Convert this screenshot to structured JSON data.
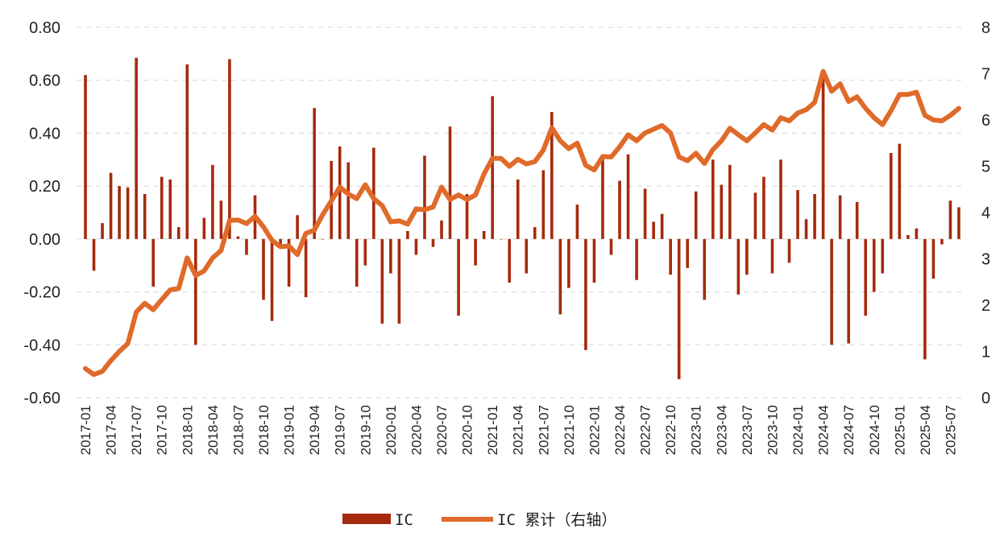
{
  "chart_data": {
    "type": "bar+line",
    "title": "",
    "x": [
      "2017-01",
      "2017-02",
      "2017-03",
      "2017-04",
      "2017-05",
      "2017-06",
      "2017-07",
      "2017-08",
      "2017-09",
      "2017-10",
      "2017-11",
      "2017-12",
      "2018-01",
      "2018-02",
      "2018-03",
      "2018-04",
      "2018-05",
      "2018-06",
      "2018-07",
      "2018-08",
      "2018-09",
      "2018-10",
      "2018-11",
      "2018-12",
      "2019-01",
      "2019-02",
      "2019-03",
      "2019-04",
      "2019-05",
      "2019-06",
      "2019-07",
      "2019-08",
      "2019-09",
      "2019-10",
      "2019-11",
      "2019-12",
      "2020-01",
      "2020-02",
      "2020-03",
      "2020-04",
      "2020-05",
      "2020-06",
      "2020-07",
      "2020-08",
      "2020-09",
      "2020-10",
      "2020-11",
      "2020-12",
      "2021-01",
      "2021-02",
      "2021-03",
      "2021-04",
      "2021-05",
      "2021-06",
      "2021-07",
      "2021-08",
      "2021-09",
      "2021-10",
      "2021-11",
      "2021-12",
      "2022-01",
      "2022-02",
      "2022-03",
      "2022-04",
      "2022-05",
      "2022-06",
      "2022-07",
      "2022-08",
      "2022-09",
      "2022-10",
      "2022-11",
      "2022-12",
      "2023-01",
      "2023-02",
      "2023-03",
      "2023-04",
      "2023-05",
      "2023-06",
      "2023-07",
      "2023-08",
      "2023-09",
      "2023-10",
      "2023-11",
      "2023-12",
      "2024-01",
      "2024-02",
      "2024-03",
      "2024-04",
      "2024-05",
      "2024-06",
      "2024-07",
      "2024-08",
      "2024-09",
      "2024-10",
      "2024-11",
      "2024-12",
      "2025-01",
      "2025-02",
      "2025-03",
      "2025-04",
      "2025-05",
      "2025-06",
      "2025-07",
      "2025-08"
    ],
    "x_tick_labels": [
      "2017-01",
      "2017-04",
      "2017-07",
      "2017-10",
      "2018-01",
      "2018-04",
      "2018-07",
      "2018-10",
      "2019-01",
      "2019-04",
      "2019-07",
      "2019-10",
      "2020-01",
      "2020-04",
      "2020-07",
      "2020-10",
      "2021-01",
      "2021-04",
      "2021-07",
      "2021-10",
      "2022-01",
      "2022-04",
      "2022-07",
      "2022-10",
      "2023-01",
      "2023-04",
      "2023-07",
      "2023-10",
      "2024-01",
      "2024-04",
      "2024-07",
      "2024-10",
      "2025-01",
      "2025-04",
      "2025-07"
    ],
    "y_left": {
      "range": [
        -0.6,
        0.8
      ],
      "ticks": [
        "0.80",
        "0.60",
        "0.40",
        "0.20",
        "0.00",
        "-0.20",
        "-0.40",
        "-0.60"
      ],
      "tick_values": [
        0.8,
        0.6,
        0.4,
        0.2,
        0.0,
        -0.2,
        -0.4,
        -0.6
      ]
    },
    "y_right": {
      "range": [
        0,
        8
      ],
      "ticks": [
        "8",
        "7",
        "6",
        "5",
        "4",
        "3",
        "2",
        "1",
        "0"
      ],
      "tick_values": [
        8,
        7,
        6,
        5,
        4,
        3,
        2,
        1,
        0
      ]
    },
    "grid": "horizontal dashed",
    "legend_position": "bottom",
    "series": [
      {
        "name": "IC",
        "type": "bar",
        "axis": "left",
        "color": "#A52A0D",
        "values": [
          0.62,
          -0.12,
          0.06,
          0.25,
          0.2,
          0.195,
          0.685,
          0.17,
          -0.18,
          0.235,
          0.225,
          0.045,
          0.66,
          -0.4,
          0.08,
          0.28,
          0.145,
          0.68,
          0.01,
          -0.06,
          0.165,
          -0.23,
          -0.31,
          -0.03,
          -0.18,
          0.09,
          -0.22,
          0.495,
          0.0,
          0.295,
          0.35,
          0.29,
          -0.18,
          -0.1,
          0.345,
          -0.32,
          -0.13,
          -0.32,
          0.03,
          -0.06,
          0.315,
          -0.03,
          0.07,
          0.425,
          -0.29,
          0.17,
          -0.1,
          0.03,
          0.54,
          0.0,
          -0.165,
          0.225,
          -0.13,
          0.045,
          0.26,
          0.48,
          -0.285,
          -0.185,
          0.13,
          -0.42,
          -0.165,
          0.31,
          -0.06,
          0.22,
          0.32,
          -0.155,
          0.19,
          0.065,
          0.095,
          -0.135,
          -0.53,
          -0.11,
          0.18,
          -0.23,
          0.3,
          0.205,
          0.28,
          -0.21,
          -0.135,
          0.175,
          0.235,
          -0.13,
          0.3,
          -0.09,
          0.185,
          0.075,
          0.17,
          0.63,
          -0.4,
          0.165,
          -0.395,
          0.14,
          -0.29,
          -0.2,
          -0.13,
          0.325,
          0.36,
          0.015,
          0.04,
          -0.455,
          -0.15,
          -0.02,
          0.145,
          0.12
        ]
      },
      {
        "name": "IC 累计（右轴）",
        "type": "line",
        "axis": "right",
        "color": "#E06A2A",
        "values": [
          0.63,
          0.5,
          0.57,
          0.8,
          1.0,
          1.17,
          1.85,
          2.04,
          1.9,
          2.12,
          2.33,
          2.36,
          3.02,
          2.64,
          2.74,
          3.02,
          3.18,
          3.83,
          3.84,
          3.76,
          3.92,
          3.69,
          3.4,
          3.26,
          3.28,
          3.09,
          3.55,
          3.62,
          3.96,
          4.25,
          4.55,
          4.4,
          4.3,
          4.6,
          4.3,
          4.15,
          3.8,
          3.82,
          3.75,
          4.08,
          4.06,
          4.12,
          4.55,
          4.28,
          4.38,
          4.28,
          4.38,
          4.83,
          5.17,
          5.17,
          5.0,
          5.15,
          5.05,
          5.1,
          5.35,
          5.83,
          5.55,
          5.38,
          5.5,
          5.02,
          4.92,
          5.21,
          5.2,
          5.42,
          5.68,
          5.55,
          5.72,
          5.8,
          5.88,
          5.72,
          5.2,
          5.12,
          5.28,
          5.06,
          5.36,
          5.55,
          5.82,
          5.68,
          5.55,
          5.72,
          5.9,
          5.78,
          6.05,
          5.98,
          6.15,
          6.22,
          6.38,
          7.05,
          6.62,
          6.78,
          6.4,
          6.5,
          6.25,
          6.05,
          5.9,
          6.2,
          6.55,
          6.55,
          6.6,
          6.1,
          6.0,
          5.98,
          6.1,
          6.25
        ]
      }
    ]
  },
  "legend": {
    "bar_label": "IC",
    "line_label": "IC 累计（右轴）"
  }
}
